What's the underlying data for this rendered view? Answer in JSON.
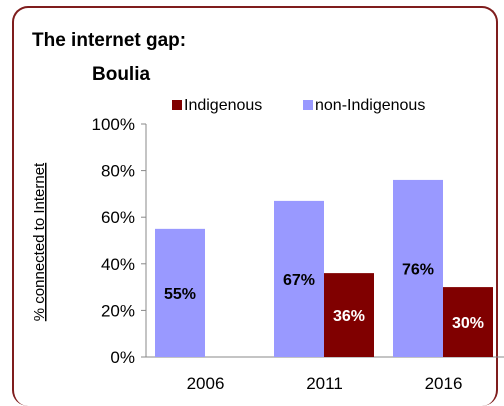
{
  "chart_data": {
    "type": "bar",
    "title_line1": "The internet gap:",
    "title_line2": "Boulia",
    "ylabel": "% connected to Internet",
    "categories": [
      "2006",
      "2011",
      "2016"
    ],
    "ylim": [
      0,
      100
    ],
    "y_ticks": [
      0,
      20,
      40,
      60,
      80,
      100
    ],
    "y_tick_labels": [
      "0%",
      "20%",
      "40%",
      "60%",
      "80%",
      "100%"
    ],
    "legend_position": "top",
    "series": [
      {
        "name": "non-Indigenous",
        "color": "#9999ff",
        "values": [
          55,
          67,
          76
        ],
        "data_labels": [
          "55%",
          "67%",
          "76%"
        ]
      },
      {
        "name": "Indigenous",
        "color": "#800000",
        "values": [
          null,
          36,
          30
        ],
        "data_labels": [
          "",
          "36%",
          "30%"
        ]
      }
    ],
    "grid": false
  },
  "colors": {
    "frame_border": "#7f1d1d"
  }
}
